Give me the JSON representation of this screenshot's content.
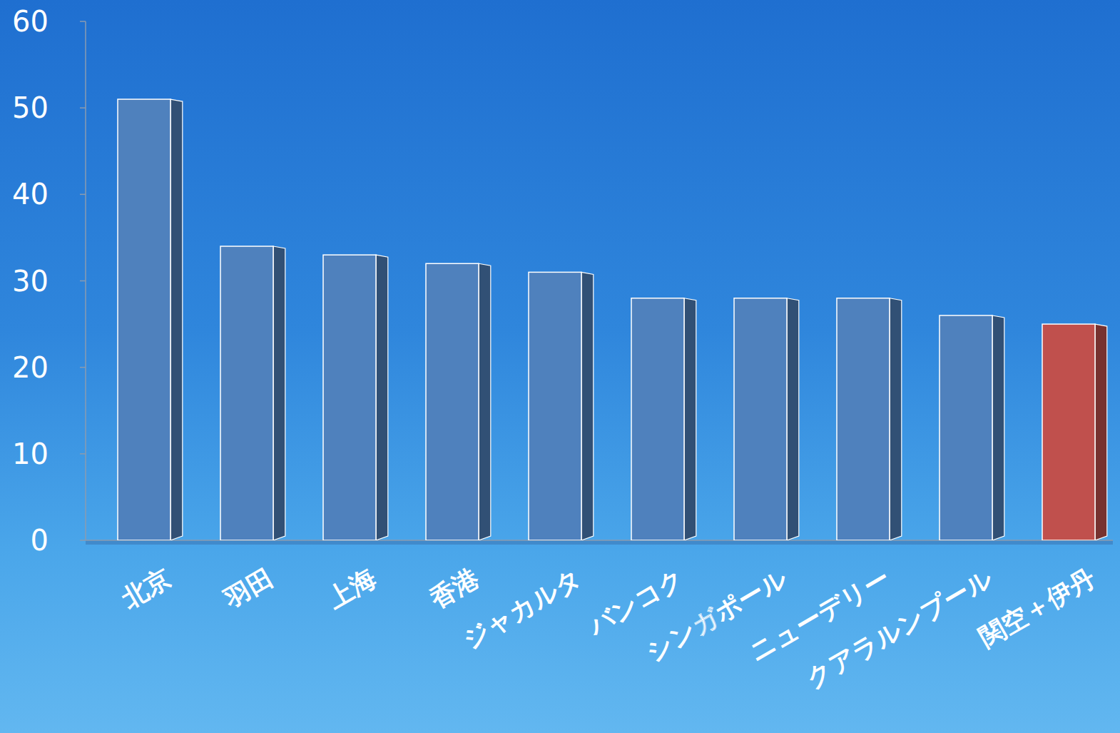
{
  "chart_data": {
    "type": "bar",
    "categories": [
      "北京",
      "羽田",
      "上海",
      "香港",
      "ジャカルタ",
      "バンコク",
      "シンガポール",
      "ニューデリー",
      "クアラルンプール",
      "関空＋伊丹"
    ],
    "values": [
      51,
      34,
      33,
      32,
      31,
      28,
      28,
      28,
      26,
      25
    ],
    "colors": [
      "#4f81bd",
      "#4f81bd",
      "#4f81bd",
      "#4f81bd",
      "#4f81bd",
      "#4f81bd",
      "#4f81bd",
      "#4f81bd",
      "#4f81bd",
      "#c0504d"
    ],
    "ylim": [
      0,
      60
    ],
    "yticks": [
      0,
      10,
      20,
      30,
      40,
      50,
      60
    ],
    "grid": false
  }
}
